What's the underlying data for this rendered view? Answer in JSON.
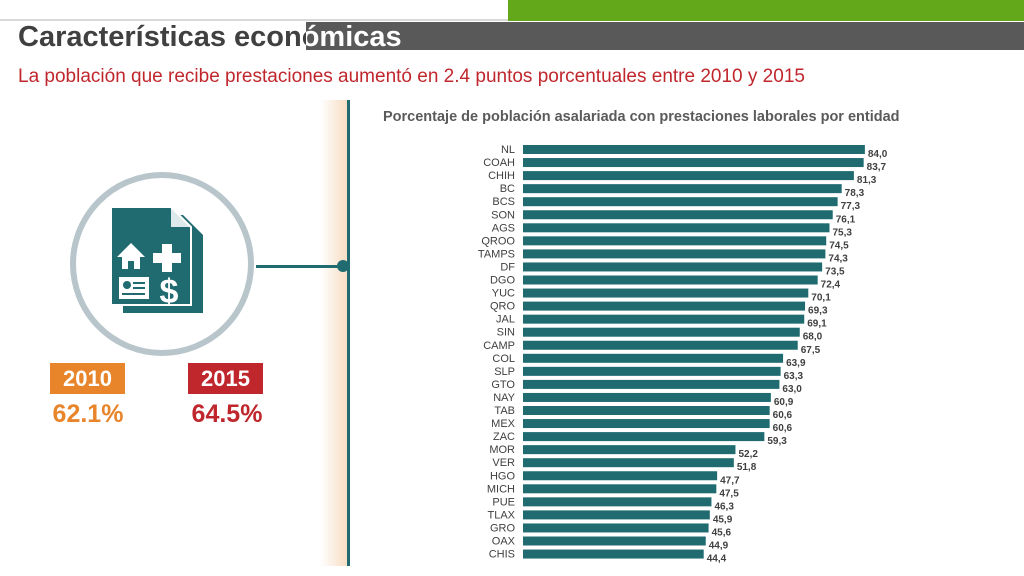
{
  "title": "Características económicas",
  "subtitle": "La población que recibe prestaciones aumentó en 2.4 puntos porcentuales entre 2010 y 2015",
  "summary": {
    "year_a": "2010",
    "value_a": "62.1%",
    "year_b": "2015",
    "value_b": "64.5%"
  },
  "icon": "benefits-document-icon",
  "colors": {
    "accent_green": "#62a81a",
    "bar": "#1f6b70",
    "orange": "#e8842a",
    "red": "#c0272d"
  },
  "chart_data": {
    "type": "bar",
    "orientation": "horizontal",
    "title": "Porcentaje de población asalariada con prestaciones laborales por entidad",
    "categories": [
      "NL",
      "COAH",
      "CHIH",
      "BC",
      "BCS",
      "SON",
      "AGS",
      "QROO",
      "TAMPS",
      "DF",
      "DGO",
      "YUC",
      "QRO",
      "JAL",
      "SIN",
      "CAMP",
      "COL",
      "SLP",
      "GTO",
      "NAY",
      "TAB",
      "MEX",
      "ZAC",
      "MOR",
      "VER",
      "HGO",
      "MICH",
      "PUE",
      "TLAX",
      "GRO",
      "OAX",
      "CHIS"
    ],
    "values": [
      84.0,
      83.7,
      81.3,
      78.3,
      77.3,
      76.1,
      75.3,
      74.5,
      74.3,
      73.5,
      72.4,
      70.1,
      69.3,
      69.1,
      68.0,
      67.5,
      63.9,
      63.3,
      63.0,
      60.9,
      60.6,
      60.6,
      59.3,
      52.2,
      51.8,
      47.7,
      47.5,
      46.3,
      45.9,
      45.6,
      44.9,
      44.4
    ],
    "labels": [
      "84,0",
      "83,7",
      "81,3",
      "78,3",
      "77,3",
      "76,1",
      "75,3",
      "74,5",
      "74,3",
      "73,5",
      "72,4",
      "70,1",
      "69,3",
      "69,1",
      "68,0",
      "67,5",
      "63,9",
      "63,3",
      "63,0",
      "60,9",
      "60,6",
      "60,6",
      "59,3",
      "52,2",
      "51,8",
      "47,7",
      "47,5",
      "46,3",
      "45,9",
      "45,6",
      "44,9",
      "44,4"
    ],
    "xlabel": "",
    "ylabel": "",
    "grid": false
  }
}
